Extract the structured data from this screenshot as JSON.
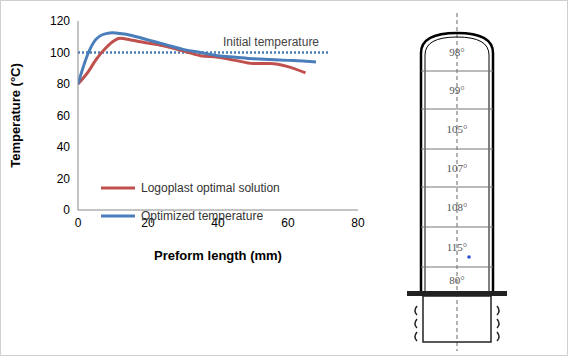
{
  "chart_data": {
    "type": "line",
    "xlabel": "Preform length (mm)",
    "ylabel": "Temperature (°C)",
    "x": [
      0,
      3,
      5,
      8,
      10,
      12,
      15,
      20,
      25,
      30,
      35,
      40,
      45,
      50,
      55,
      60,
      65,
      68
    ],
    "series": [
      {
        "name": "Logoplast optimal solution",
        "color": "#c0504d",
        "line_style": "solid",
        "values": [
          80,
          88,
          95,
          103,
          107,
          109,
          108,
          106,
          104,
          101,
          98,
          97,
          95,
          93,
          93,
          91,
          87,
          null
        ]
      },
      {
        "name": "Optimized temperature",
        "color": "#4a7ebb",
        "line_style": "solid",
        "values": [
          80,
          100,
          108,
          112,
          112.5,
          112,
          111,
          108,
          105,
          102,
          100,
          98,
          97,
          96,
          95.5,
          95,
          94.5,
          94
        ]
      }
    ],
    "reference_line": {
      "label": "Initial temperature",
      "y": 100,
      "x": [
        0,
        72
      ],
      "color": "#4a7ebb",
      "line_style": "dotted"
    },
    "xlim": [
      0,
      80
    ],
    "xticks": [
      0,
      20,
      40,
      60,
      80
    ],
    "ylim": [
      0,
      120
    ],
    "yticks": [
      0,
      20,
      40,
      60,
      80,
      100,
      120
    ],
    "grid": false,
    "legend": "lower left"
  },
  "diagram": {
    "labels": [
      "98°",
      "99°",
      "105°",
      "107°",
      "108°",
      "115°",
      "80°"
    ]
  }
}
